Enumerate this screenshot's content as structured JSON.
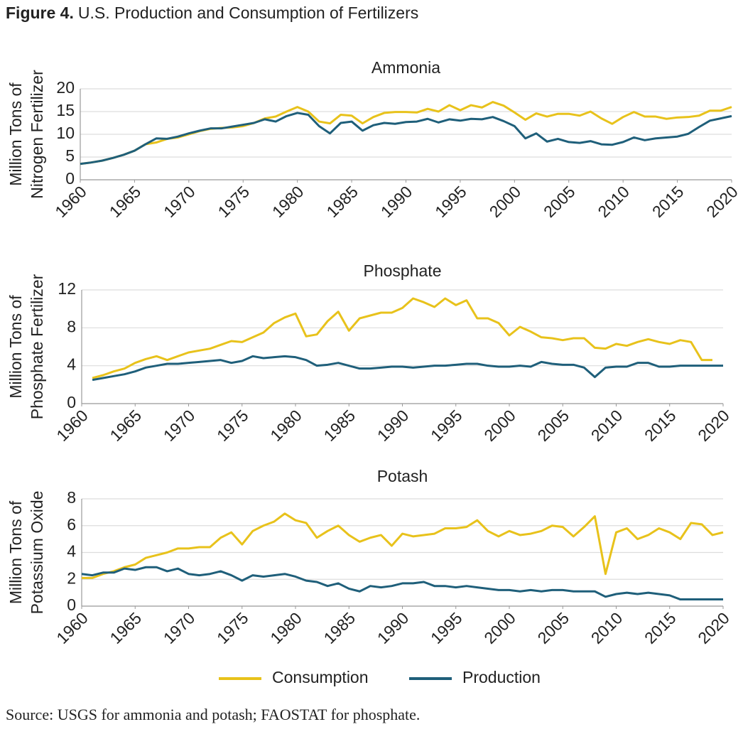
{
  "title_label": "Figure 4.",
  "title": "U.S. Production and Consumption of Fertilizers",
  "source": "Source: USGS for ammonia and potash; FAOSTAT for phosphate.",
  "chart_data": [
    {
      "type": "line",
      "title": "Ammonia",
      "ylabel": [
        "Million Tons of",
        "Nitrogen Fertilizer"
      ],
      "x": [
        1960,
        1961,
        1962,
        1963,
        1964,
        1965,
        1966,
        1967,
        1968,
        1969,
        1970,
        1971,
        1972,
        1973,
        1974,
        1975,
        1976,
        1977,
        1978,
        1979,
        1980,
        1981,
        1982,
        1983,
        1984,
        1985,
        1986,
        1987,
        1988,
        1989,
        1990,
        1991,
        1992,
        1993,
        1994,
        1995,
        1996,
        1997,
        1998,
        1999,
        2000,
        2001,
        2002,
        2003,
        2004,
        2005,
        2006,
        2007,
        2008,
        2009,
        2010,
        2011,
        2012,
        2013,
        2014,
        2015,
        2016,
        2017,
        2018,
        2019,
        2020
      ],
      "series": [
        {
          "name": "Consumption",
          "color": "#e8c21b",
          "values": [
            3.5,
            3.8,
            4.2,
            4.8,
            5.5,
            6.4,
            7.8,
            8.2,
            9.0,
            9.3,
            10.0,
            10.7,
            11.2,
            11.4,
            11.5,
            11.8,
            12.5,
            13.5,
            13.9,
            15.0,
            16.0,
            15.0,
            12.8,
            12.4,
            14.3,
            14.1,
            12.4,
            13.8,
            14.7,
            14.9,
            14.9,
            14.8,
            15.6,
            15.0,
            16.4,
            15.3,
            16.4,
            15.9,
            17.1,
            16.3,
            14.8,
            13.2,
            14.6,
            13.9,
            14.5,
            14.5,
            14.1,
            15.0,
            13.5,
            12.3,
            13.8,
            14.9,
            13.9,
            13.9,
            13.4,
            13.7,
            13.8,
            14.1,
            15.2,
            15.2,
            16.0
          ]
        },
        {
          "name": "Production",
          "color": "#1f5f7a",
          "values": [
            3.5,
            3.8,
            4.2,
            4.8,
            5.5,
            6.4,
            7.8,
            9.1,
            9.0,
            9.5,
            10.2,
            10.8,
            11.3,
            11.3,
            11.7,
            12.1,
            12.5,
            13.3,
            12.8,
            14.0,
            14.7,
            14.3,
            11.8,
            10.2,
            12.5,
            12.8,
            10.8,
            12.0,
            12.5,
            12.3,
            12.7,
            12.8,
            13.4,
            12.6,
            13.3,
            13.0,
            13.4,
            13.3,
            13.8,
            12.9,
            11.8,
            9.1,
            10.2,
            8.4,
            9.0,
            8.3,
            8.1,
            8.5,
            7.8,
            7.7,
            8.3,
            9.3,
            8.7,
            9.1,
            9.3,
            9.5,
            10.1,
            11.6,
            13.0,
            13.5,
            14.0
          ]
        }
      ],
      "xlim": [
        1960,
        2020
      ],
      "xticks": [
        1960,
        1965,
        1970,
        1975,
        1980,
        1985,
        1990,
        1995,
        2000,
        2005,
        2010,
        2015,
        2020
      ],
      "ylim": [
        0,
        20
      ],
      "yticks": [
        0,
        5,
        10,
        15,
        20
      ],
      "grid": true
    },
    {
      "type": "line",
      "title": "Phosphate",
      "ylabel": [
        "Million Tons of",
        "Phosphate Fertilizer"
      ],
      "x": [
        1960,
        1961,
        1962,
        1963,
        1964,
        1965,
        1966,
        1967,
        1968,
        1969,
        1970,
        1971,
        1972,
        1973,
        1974,
        1975,
        1976,
        1977,
        1978,
        1979,
        1980,
        1981,
        1982,
        1983,
        1984,
        1985,
        1986,
        1987,
        1988,
        1989,
        1990,
        1991,
        1992,
        1993,
        1994,
        1995,
        1996,
        1997,
        1998,
        1999,
        2000,
        2001,
        2002,
        2003,
        2004,
        2005,
        2006,
        2007,
        2008,
        2009,
        2010,
        2011,
        2012,
        2013,
        2014,
        2015,
        2016,
        2017,
        2018,
        2019,
        2020
      ],
      "series": [
        {
          "name": "Consumption",
          "color": "#e8c21b",
          "values": [
            null,
            2.7,
            3.0,
            3.4,
            3.7,
            4.3,
            4.7,
            5.0,
            4.6,
            5.0,
            5.4,
            5.6,
            5.8,
            6.2,
            6.6,
            6.5,
            7.0,
            7.5,
            8.5,
            9.1,
            9.5,
            7.1,
            7.3,
            8.7,
            9.7,
            7.7,
            9.0,
            9.3,
            9.6,
            9.6,
            10.1,
            11.1,
            10.7,
            10.2,
            11.1,
            10.4,
            10.9,
            9.0,
            9.0,
            8.5,
            7.2,
            8.1,
            7.6,
            7.0,
            6.9,
            6.7,
            6.9,
            6.9,
            5.9,
            5.8,
            6.3,
            6.1,
            6.5,
            6.8,
            6.5,
            6.3,
            6.7,
            6.5,
            4.6,
            4.6,
            null
          ]
        },
        {
          "name": "Production",
          "color": "#1f5f7a",
          "values": [
            null,
            2.5,
            2.7,
            2.9,
            3.1,
            3.4,
            3.8,
            4.0,
            4.2,
            4.2,
            4.3,
            4.4,
            4.5,
            4.6,
            4.3,
            4.5,
            5.0,
            4.8,
            4.9,
            5.0,
            4.9,
            4.6,
            4.0,
            4.1,
            4.3,
            4.0,
            3.7,
            3.7,
            3.8,
            3.9,
            3.9,
            3.8,
            3.9,
            4.0,
            4.0,
            4.1,
            4.2,
            4.2,
            4.0,
            3.9,
            3.9,
            4.0,
            3.9,
            4.4,
            4.2,
            4.1,
            4.1,
            3.8,
            2.8,
            3.8,
            3.9,
            3.9,
            4.3,
            4.3,
            3.9,
            3.9,
            4.0,
            4.0,
            4.0,
            4.0,
            4.0
          ]
        }
      ],
      "xlim": [
        1960,
        2020
      ],
      "xticks": [
        1960,
        1965,
        1970,
        1975,
        1980,
        1985,
        1990,
        1995,
        2000,
        2005,
        2010,
        2015,
        2020
      ],
      "ylim": [
        0,
        12
      ],
      "yticks": [
        0,
        4,
        8,
        12
      ],
      "grid": true
    },
    {
      "type": "line",
      "title": "Potash",
      "ylabel": [
        "Million Tons of",
        "Potassium Oxide"
      ],
      "x": [
        1960,
        1961,
        1962,
        1963,
        1964,
        1965,
        1966,
        1967,
        1968,
        1969,
        1970,
        1971,
        1972,
        1973,
        1974,
        1975,
        1976,
        1977,
        1978,
        1979,
        1980,
        1981,
        1982,
        1983,
        1984,
        1985,
        1986,
        1987,
        1988,
        1989,
        1990,
        1991,
        1992,
        1993,
        1994,
        1995,
        1996,
        1997,
        1998,
        1999,
        2000,
        2001,
        2002,
        2003,
        2004,
        2005,
        2006,
        2007,
        2008,
        2009,
        2010,
        2011,
        2012,
        2013,
        2014,
        2015,
        2016,
        2017,
        2018,
        2019,
        2020
      ],
      "series": [
        {
          "name": "Consumption",
          "color": "#e8c21b",
          "values": [
            2.1,
            2.1,
            2.4,
            2.6,
            2.9,
            3.1,
            3.6,
            3.8,
            4.0,
            4.3,
            4.3,
            4.4,
            4.4,
            5.1,
            5.5,
            4.6,
            5.6,
            6.0,
            6.3,
            6.9,
            6.4,
            6.2,
            5.1,
            5.6,
            6.0,
            5.3,
            4.8,
            5.1,
            5.3,
            4.5,
            5.4,
            5.2,
            5.3,
            5.4,
            5.8,
            5.8,
            5.9,
            6.4,
            5.6,
            5.2,
            5.6,
            5.3,
            5.4,
            5.6,
            6.0,
            5.9,
            5.2,
            5.9,
            6.7,
            2.4,
            5.5,
            5.8,
            5.0,
            5.3,
            5.8,
            5.5,
            5.0,
            6.2,
            6.1,
            5.3,
            5.5
          ]
        },
        {
          "name": "Production",
          "color": "#1f5f7a",
          "values": [
            2.4,
            2.3,
            2.5,
            2.5,
            2.8,
            2.7,
            2.9,
            2.9,
            2.6,
            2.8,
            2.4,
            2.3,
            2.4,
            2.6,
            2.3,
            1.9,
            2.3,
            2.2,
            2.3,
            2.4,
            2.2,
            1.9,
            1.8,
            1.5,
            1.7,
            1.3,
            1.1,
            1.5,
            1.4,
            1.5,
            1.7,
            1.7,
            1.8,
            1.5,
            1.5,
            1.4,
            1.5,
            1.4,
            1.3,
            1.2,
            1.2,
            1.1,
            1.2,
            1.1,
            1.2,
            1.2,
            1.1,
            1.1,
            1.1,
            0.7,
            0.9,
            1.0,
            0.9,
            1.0,
            0.9,
            0.8,
            0.5,
            0.5,
            0.5,
            0.5,
            0.5
          ]
        }
      ],
      "xlim": [
        1960,
        2020
      ],
      "xticks": [
        1960,
        1965,
        1970,
        1975,
        1980,
        1985,
        1990,
        1995,
        2000,
        2005,
        2010,
        2015,
        2020
      ],
      "ylim": [
        0,
        8
      ],
      "yticks": [
        0,
        2,
        4,
        6,
        8
      ],
      "grid": true
    }
  ]
}
